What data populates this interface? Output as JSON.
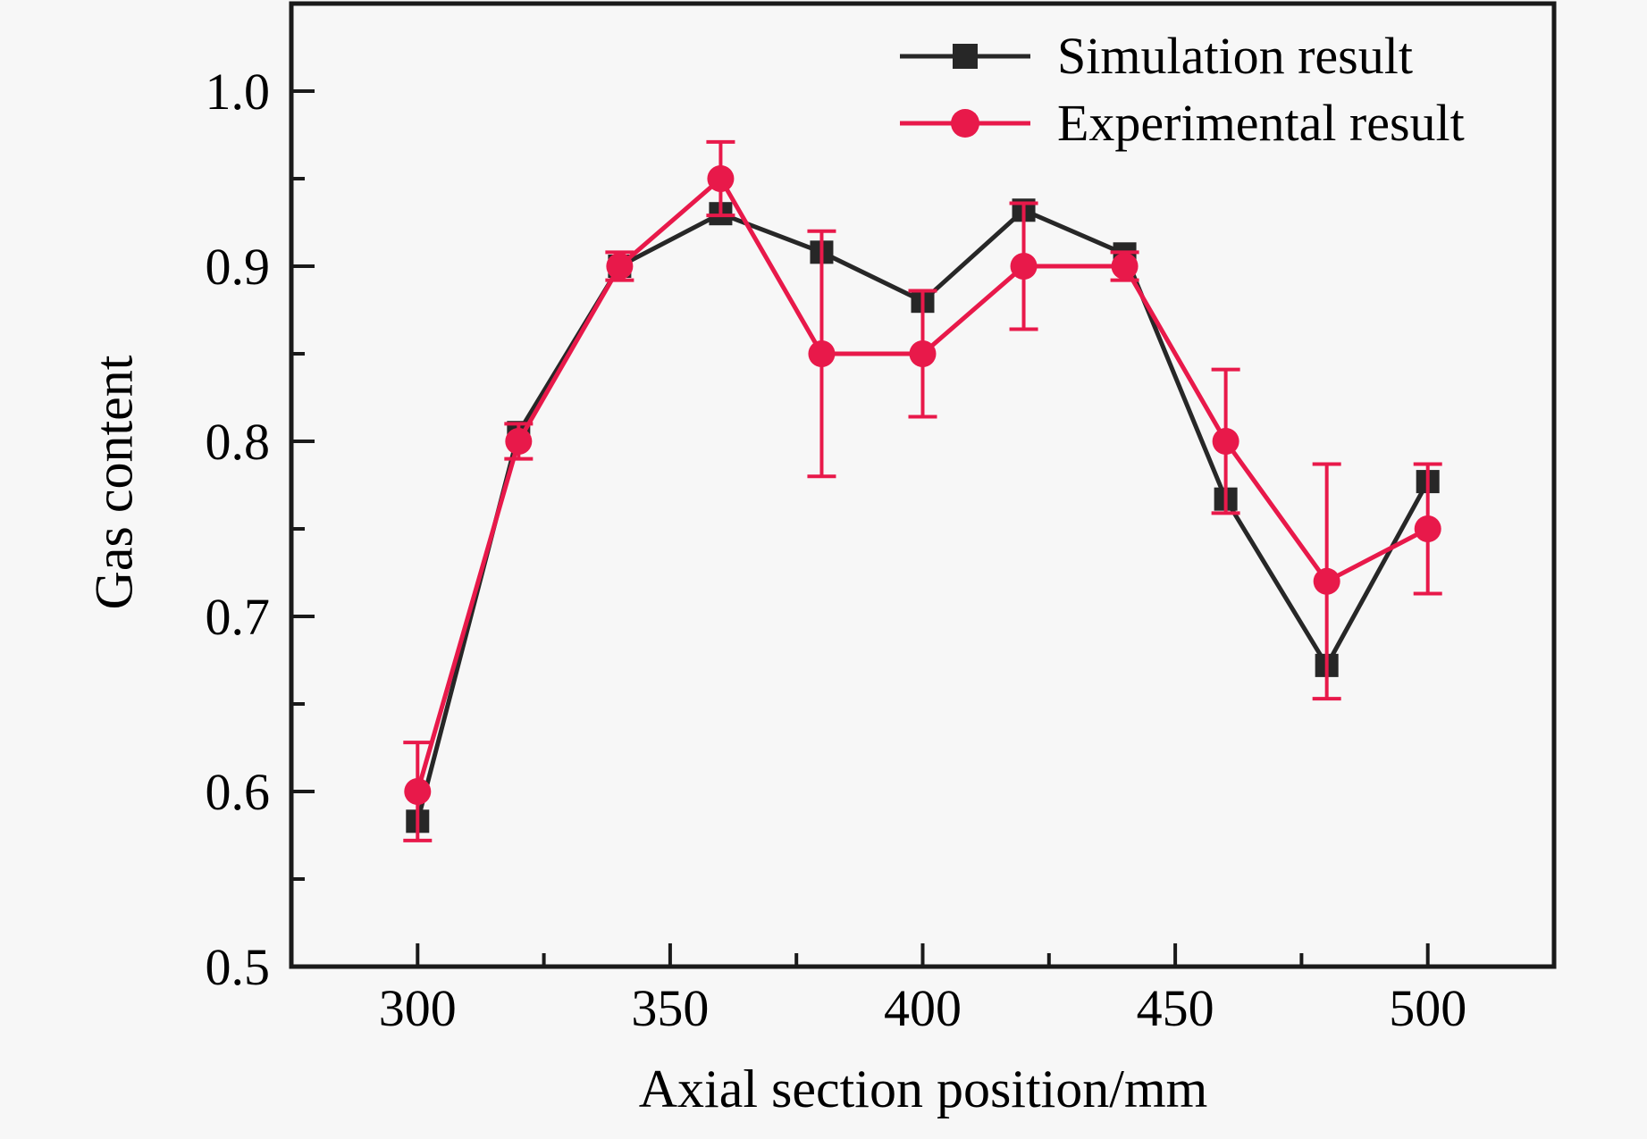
{
  "figure": {
    "background": "#f7f7f7",
    "axis_color": "#1a1a1a",
    "text_color": "#000000"
  },
  "chart_data": {
    "type": "line",
    "title": "",
    "xlabel": "Axial section position/mm",
    "ylabel": "Gas content",
    "xlim": [
      275,
      525
    ],
    "ylim": [
      0.5,
      1.05
    ],
    "x_major_ticks": [
      300,
      350,
      400,
      450,
      500
    ],
    "x_minor_step": 25,
    "y_major_ticks": [
      0.5,
      0.6,
      0.7,
      0.8,
      0.9,
      1.0
    ],
    "y_minor_step": 0.05,
    "grid": false,
    "legend_position": "top-right-inside",
    "x": [
      300,
      320,
      340,
      360,
      380,
      400,
      420,
      440,
      460,
      480,
      500
    ],
    "series": [
      {
        "name": "Simulation result",
        "marker": "square",
        "color": "#272727",
        "values": [
          0.583,
          0.805,
          0.9,
          0.93,
          0.908,
          0.88,
          0.932,
          0.907,
          0.767,
          0.672,
          0.777
        ]
      },
      {
        "name": "Experimental result",
        "marker": "circle",
        "color": "#e8194a",
        "values": [
          0.6,
          0.8,
          0.9,
          0.95,
          0.85,
          0.85,
          0.9,
          0.9,
          0.8,
          0.72,
          0.75
        ],
        "error": [
          0.028,
          0.01,
          0.008,
          0.021,
          0.07,
          0.036,
          0.036,
          0.008,
          0.041,
          0.067,
          0.037
        ]
      }
    ]
  }
}
